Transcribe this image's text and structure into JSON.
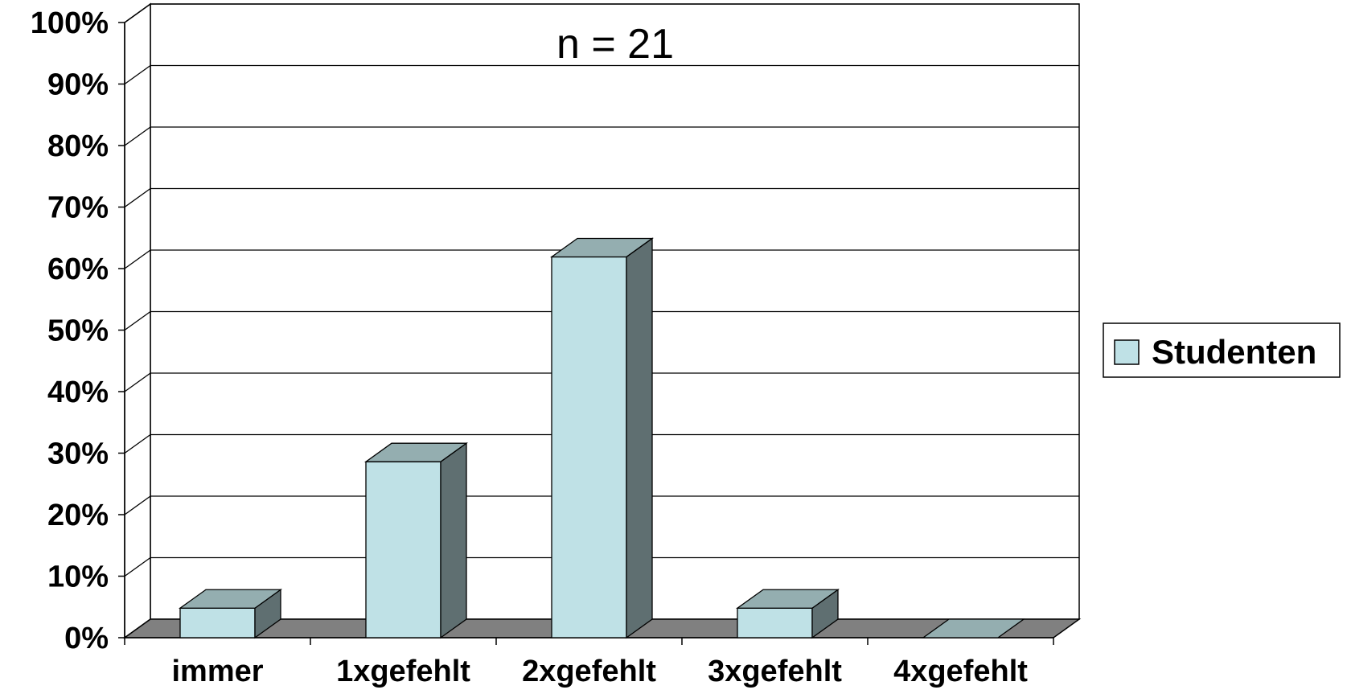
{
  "chart_data": {
    "type": "bar",
    "style": "3d-column",
    "annotation": "n = 21",
    "categories": [
      "immer",
      "1xgefehlt",
      "2xgefehlt",
      "3xgefehlt",
      "4xgefehlt"
    ],
    "series": [
      {
        "name": "Studenten",
        "values": [
          4.8,
          28.6,
          61.9,
          4.8,
          0
        ]
      }
    ],
    "ylim": [
      0,
      100
    ],
    "y_ticks": [
      "0%",
      "10%",
      "20%",
      "30%",
      "40%",
      "50%",
      "60%",
      "70%",
      "80%",
      "90%",
      "100%"
    ],
    "grid": true,
    "legend_position": "right",
    "colors": {
      "bar_front": "#bfe1e6",
      "bar_top": "#94aeb0",
      "bar_side": "#5f6f71",
      "floor": "#808080",
      "outline": "#000000"
    }
  }
}
